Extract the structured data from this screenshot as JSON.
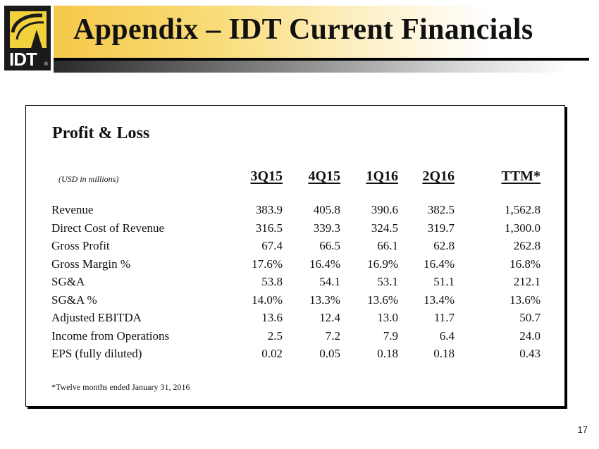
{
  "header": {
    "logo_text": "IDT",
    "logo_reg": "®",
    "title": "Appendix – IDT Current Financials"
  },
  "panel": {
    "title": "Profit & Loss",
    "units_note": "(USD in millions)",
    "columns": [
      "3Q15",
      "4Q15",
      "1Q16",
      "2Q16",
      "TTM*"
    ],
    "rows": [
      {
        "label": "Revenue",
        "values": [
          "383.9",
          "405.8",
          "390.6",
          "382.5",
          "1,562.8"
        ]
      },
      {
        "label": "Direct Cost of Revenue",
        "values": [
          "316.5",
          "339.3",
          "324.5",
          "319.7",
          "1,300.0"
        ]
      },
      {
        "label": "Gross Profit",
        "values": [
          "67.4",
          "66.5",
          "66.1",
          "62.8",
          "262.8"
        ]
      },
      {
        "label": "Gross Margin %",
        "values": [
          "17.6%",
          "16.4%",
          "16.9%",
          "16.4%",
          "16.8%"
        ]
      },
      {
        "label": "SG&A",
        "values": [
          "53.8",
          "54.1",
          "53.1",
          "51.1",
          "212.1"
        ]
      },
      {
        "label": "SG&A %",
        "values": [
          "14.0%",
          "13.3%",
          "13.6%",
          "13.4%",
          "13.6%"
        ]
      },
      {
        "label": "Adjusted EBITDA",
        "values": [
          "13.6",
          "12.4",
          "13.0",
          "11.7",
          "50.7"
        ]
      },
      {
        "label": "Income from Operations",
        "values": [
          "2.5",
          "7.2",
          "7.9",
          "6.4",
          "24.0"
        ]
      },
      {
        "label": "EPS (fully diluted)",
        "values": [
          "0.02",
          "0.05",
          "0.18",
          "0.18",
          "0.43"
        ]
      }
    ],
    "footnote": "*Twelve months ended January 31, 2016"
  },
  "page_number": "17",
  "colors": {
    "brand_yellow": "#f2d23c",
    "logo_background": "#1a1a1a"
  }
}
